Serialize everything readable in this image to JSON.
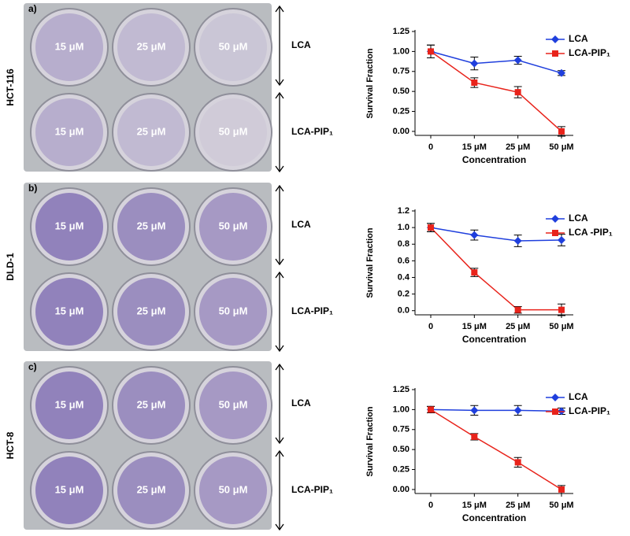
{
  "panels": [
    {
      "letter": "a)",
      "cell_line": "HCT-116",
      "wells": [
        "15 μM",
        "25 μM",
        "50 μM",
        "15 μM",
        "25 μM",
        "50 μM"
      ],
      "rows": [
        "LCA",
        "LCA-PIP₁"
      ]
    },
    {
      "letter": "b)",
      "cell_line": "DLD-1",
      "wells": [
        "15 μM",
        "25 μM",
        "50 μM",
        "15 μM",
        "25 μM",
        "50 μM"
      ],
      "rows": [
        "LCA",
        "LCA-PIP₁"
      ]
    },
    {
      "letter": "c)",
      "cell_line": "HCT-8",
      "wells": [
        "15 μM",
        "25 μM",
        "50 μM",
        "15 μM",
        "25 μM",
        "50 μM"
      ],
      "rows": [
        "LCA",
        "LCA-PIP₁"
      ]
    }
  ],
  "chart_data": [
    {
      "type": "line",
      "xlabel": "Concentration",
      "ylabel": "Survival Fraction",
      "categories": [
        "0",
        "15 μM",
        "25 μM",
        "50 μM"
      ],
      "ylim": [
        -0.05,
        1.25
      ],
      "yticks": [
        {
          "value": 0,
          "label": "0.00"
        },
        {
          "value": 0.25,
          "label": "0.25"
        },
        {
          "value": 0.5,
          "label": "0.50"
        },
        {
          "value": 0.75,
          "label": "0.75"
        },
        {
          "value": 1,
          "label": "1.00"
        },
        {
          "value": 1.25,
          "label": "1.25"
        }
      ],
      "series": [
        {
          "name": "LCA",
          "color": "#1f3fdd",
          "marker": "diamond",
          "values": [
            1.0,
            0.85,
            0.89,
            0.73
          ],
          "errors": [
            0.08,
            0.08,
            0.05,
            0.03
          ]
        },
        {
          "name": "LCA-PIP₁",
          "color": "#e8231b",
          "marker": "square",
          "values": [
            1.0,
            0.61,
            0.49,
            0.0
          ],
          "errors": [
            0.08,
            0.06,
            0.07,
            0.06
          ]
        }
      ]
    },
    {
      "type": "line",
      "xlabel": "Concentration",
      "ylabel": "Survival Fraction",
      "categories": [
        "0",
        "15 μM",
        "25 μM",
        "50 μM"
      ],
      "ylim": [
        -0.05,
        1.2
      ],
      "yticks": [
        {
          "value": 0,
          "label": "0.0"
        },
        0.2,
        0.4,
        0.6,
        0.8,
        {
          "value": 1,
          "label": "1.0"
        },
        1.2
      ],
      "series": [
        {
          "name": "LCA",
          "color": "#1f3fdd",
          "marker": "diamond",
          "values": [
            1.0,
            0.91,
            0.84,
            0.85
          ],
          "errors": [
            0.05,
            0.06,
            0.07,
            0.07
          ]
        },
        {
          "name": "LCA -PIP₁",
          "color": "#e8231b",
          "marker": "square",
          "values": [
            1.0,
            0.46,
            0.01,
            0.01
          ],
          "errors": [
            0.05,
            0.05,
            0.04,
            0.07
          ]
        }
      ]
    },
    {
      "type": "line",
      "xlabel": "Concentration",
      "ylabel": "Survival Fraction",
      "categories": [
        "0",
        "15 μM",
        "25 μM",
        "50 μM"
      ],
      "ylim": [
        -0.05,
        1.25
      ],
      "yticks": [
        {
          "value": 0,
          "label": "0.00"
        },
        {
          "value": 0.25,
          "label": "0.25"
        },
        {
          "value": 0.5,
          "label": "0.50"
        },
        {
          "value": 0.75,
          "label": "0.75"
        },
        {
          "value": 1,
          "label": "1.00"
        },
        {
          "value": 1.25,
          "label": "1.25"
        }
      ],
      "series": [
        {
          "name": "LCA",
          "color": "#1f3fdd",
          "marker": "diamond",
          "values": [
            1.0,
            0.99,
            0.99,
            0.98
          ],
          "errors": [
            0.04,
            0.06,
            0.06,
            0.04
          ]
        },
        {
          "name": "LCA-PIP₁",
          "color": "#e8231b",
          "marker": "square",
          "values": [
            1.0,
            0.66,
            0.34,
            0.0
          ],
          "errors": [
            0.04,
            0.04,
            0.06,
            0.05
          ]
        }
      ]
    }
  ]
}
